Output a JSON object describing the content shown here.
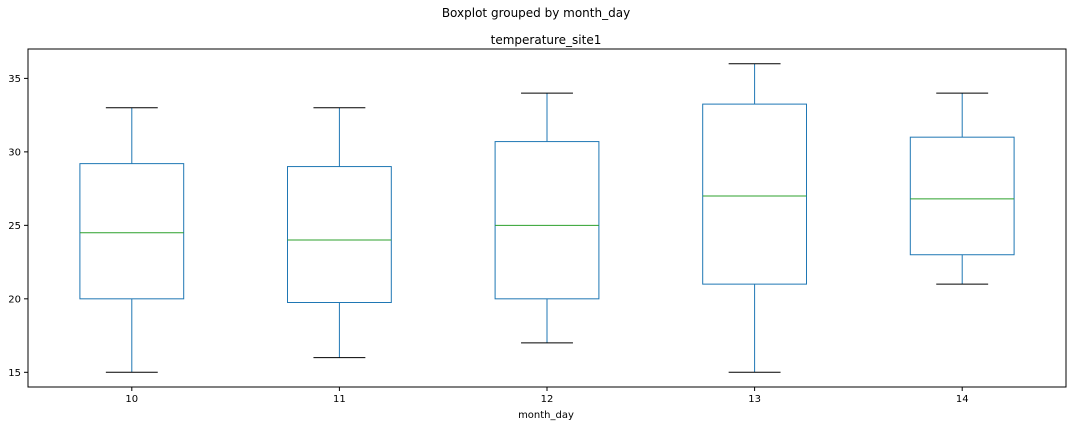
{
  "chart_data": {
    "type": "boxplot",
    "suptitle": "Boxplot grouped by month_day",
    "title": "temperature_site1",
    "xlabel": "month_day",
    "ylabel": "",
    "categories": [
      "10",
      "11",
      "12",
      "13",
      "14"
    ],
    "ylim": [
      14,
      37
    ],
    "yticks": [
      15,
      20,
      25,
      30,
      35
    ],
    "boxes": [
      {
        "category": "10",
        "whisker_low": 15,
        "q1": 20,
        "median": 24.5,
        "q3": 29.2,
        "whisker_high": 33
      },
      {
        "category": "11",
        "whisker_low": 16,
        "q1": 19.75,
        "median": 24,
        "q3": 29,
        "whisker_high": 33
      },
      {
        "category": "12",
        "whisker_low": 17,
        "q1": 20,
        "median": 25,
        "q3": 30.7,
        "whisker_high": 34
      },
      {
        "category": "13",
        "whisker_low": 15,
        "q1": 21,
        "median": 27,
        "q3": 33.25,
        "whisker_high": 36
      },
      {
        "category": "14",
        "whisker_low": 21,
        "q1": 23,
        "median": 26.8,
        "q3": 31,
        "whisker_high": 34
      }
    ],
    "grid": false,
    "colors": {
      "box": "#1f77b4",
      "median": "#2ca02c",
      "whisker": "#1f77b4",
      "cap": "#000000",
      "axes": "#000000"
    }
  }
}
